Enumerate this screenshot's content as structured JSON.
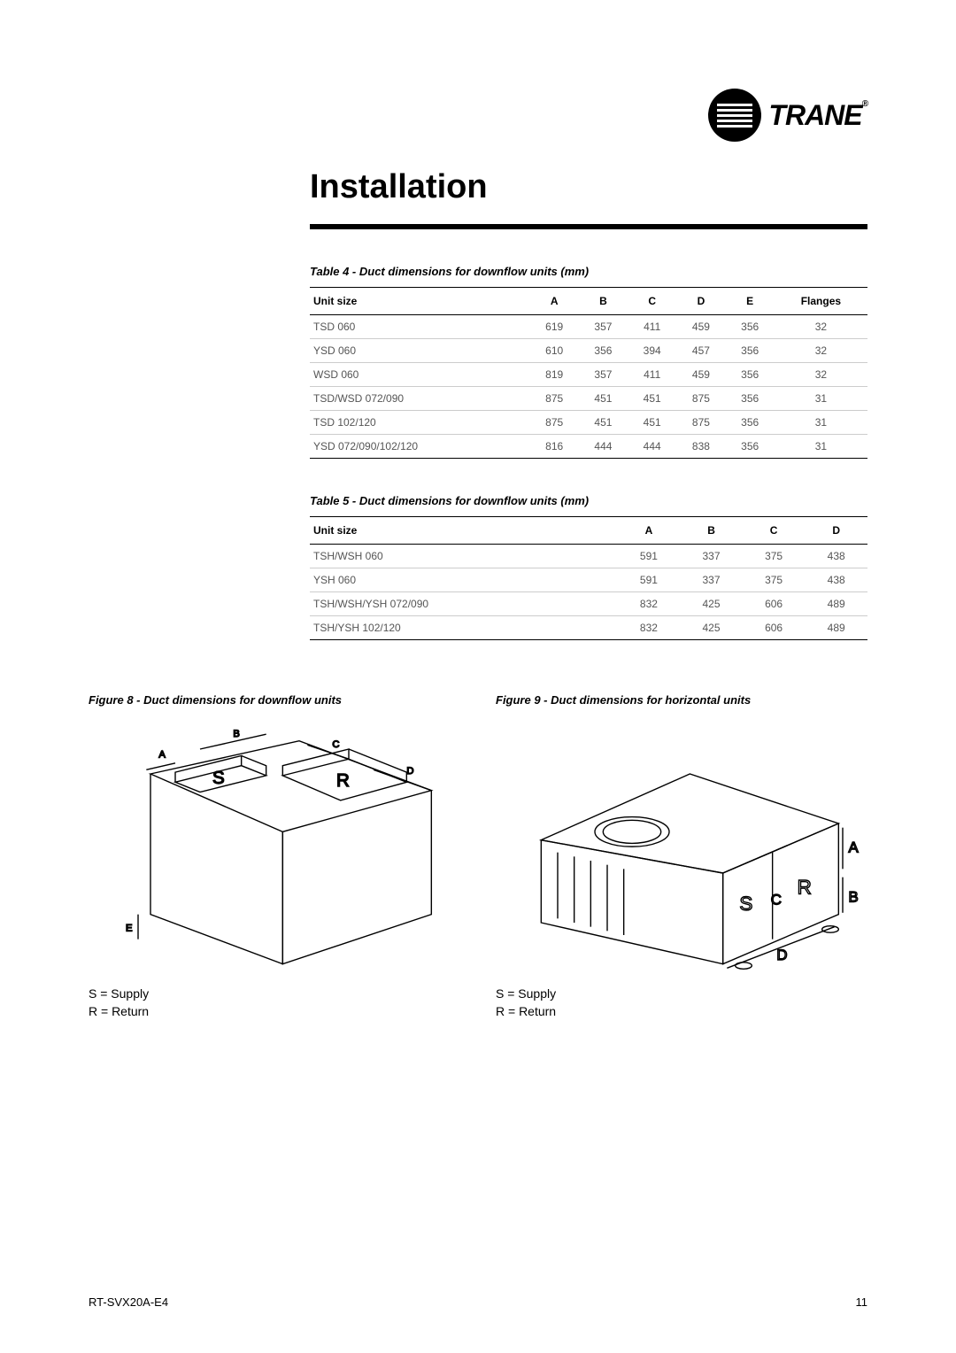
{
  "logo": {
    "brand": "TRANE"
  },
  "heading": "Installation",
  "table4": {
    "title": "Table 4 - Duct dimensions for downflow units (mm)",
    "columns": [
      "Unit size",
      "A",
      "B",
      "C",
      "D",
      "E",
      "Flanges"
    ],
    "rows": [
      [
        "TSD 060",
        "619",
        "357",
        "411",
        "459",
        "356",
        "32"
      ],
      [
        "YSD 060",
        "610",
        "356",
        "394",
        "457",
        "356",
        "32"
      ],
      [
        "WSD 060",
        "819",
        "357",
        "411",
        "459",
        "356",
        "32"
      ],
      [
        "TSD/WSD 072/090",
        "875",
        "451",
        "451",
        "875",
        "356",
        "31"
      ],
      [
        "TSD 102/120",
        "875",
        "451",
        "451",
        "875",
        "356",
        "31"
      ],
      [
        "YSD 072/090/102/120",
        "816",
        "444",
        "444",
        "838",
        "356",
        "31"
      ]
    ]
  },
  "table5": {
    "title": "Table 5 - Duct dimensions for downflow units (mm)",
    "columns": [
      "Unit size",
      "A",
      "B",
      "C",
      "D"
    ],
    "rows": [
      [
        "TSH/WSH 060",
        "591",
        "337",
        "375",
        "438"
      ],
      [
        "YSH 060",
        "591",
        "337",
        "375",
        "438"
      ],
      [
        "TSH/WSH/YSH 072/090",
        "832",
        "425",
        "606",
        "489"
      ],
      [
        "TSH/YSH 102/120",
        "832",
        "425",
        "606",
        "489"
      ]
    ]
  },
  "figure8": {
    "title": "Figure 8 - Duct dimensions for downflow units",
    "labels": {
      "A": "A",
      "B": "B",
      "C": "C",
      "D": "D",
      "E": "E",
      "S": "S",
      "R": "R"
    },
    "legend_s": "S = Supply",
    "legend_r": "R = Return"
  },
  "figure9": {
    "title": "Figure 9 - Duct dimensions for horizontal units",
    "labels": {
      "A": "A",
      "B": "B",
      "C": "C",
      "D": "D",
      "S": "S",
      "R": "R"
    },
    "legend_s": "S = Supply",
    "legend_r": "R = Return"
  },
  "footer": {
    "doc_id": "RT-SVX20A-E4",
    "page": "11"
  },
  "colors": {
    "text": "#000000",
    "table_text": "#555555",
    "rule": "#000000",
    "border_light": "#cccccc",
    "background": "#ffffff"
  }
}
